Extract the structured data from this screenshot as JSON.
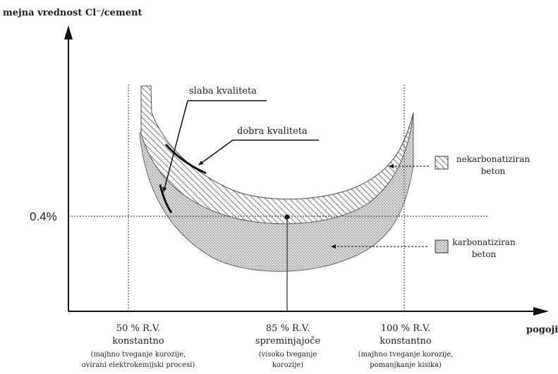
{
  "diagram": {
    "y_axis_label": "mejna vrednost Cl⁻/cement",
    "x_axis_label": "pogoji",
    "threshold_label": "0.4%",
    "curve_labels": {
      "weak": "slaba kvaliteta",
      "good": "dobra kvaliteta"
    },
    "legend": [
      {
        "line1": "nekarbonatiziran",
        "line2": "beton",
        "pattern": "hatch"
      },
      {
        "line1": "karbonatiziran",
        "line2": "beton",
        "pattern": "stipple"
      }
    ],
    "conditions": [
      {
        "title": "50 % R.V.",
        "subtitle": "konstantno",
        "note_1": "(majhno tveganje korozije,",
        "note_2": "ovirani elektrokemijski procesi)"
      },
      {
        "title": "85 % R.V.",
        "subtitle": "spreminjajoče",
        "note_1": "(visoko tveganje",
        "note_2": "korozije)"
      },
      {
        "title": "100 % R.V.",
        "subtitle": "konstantno",
        "note_1": "(majhno tveganje korozije,",
        "note_2": "pomanjkanje kisika)"
      }
    ]
  }
}
